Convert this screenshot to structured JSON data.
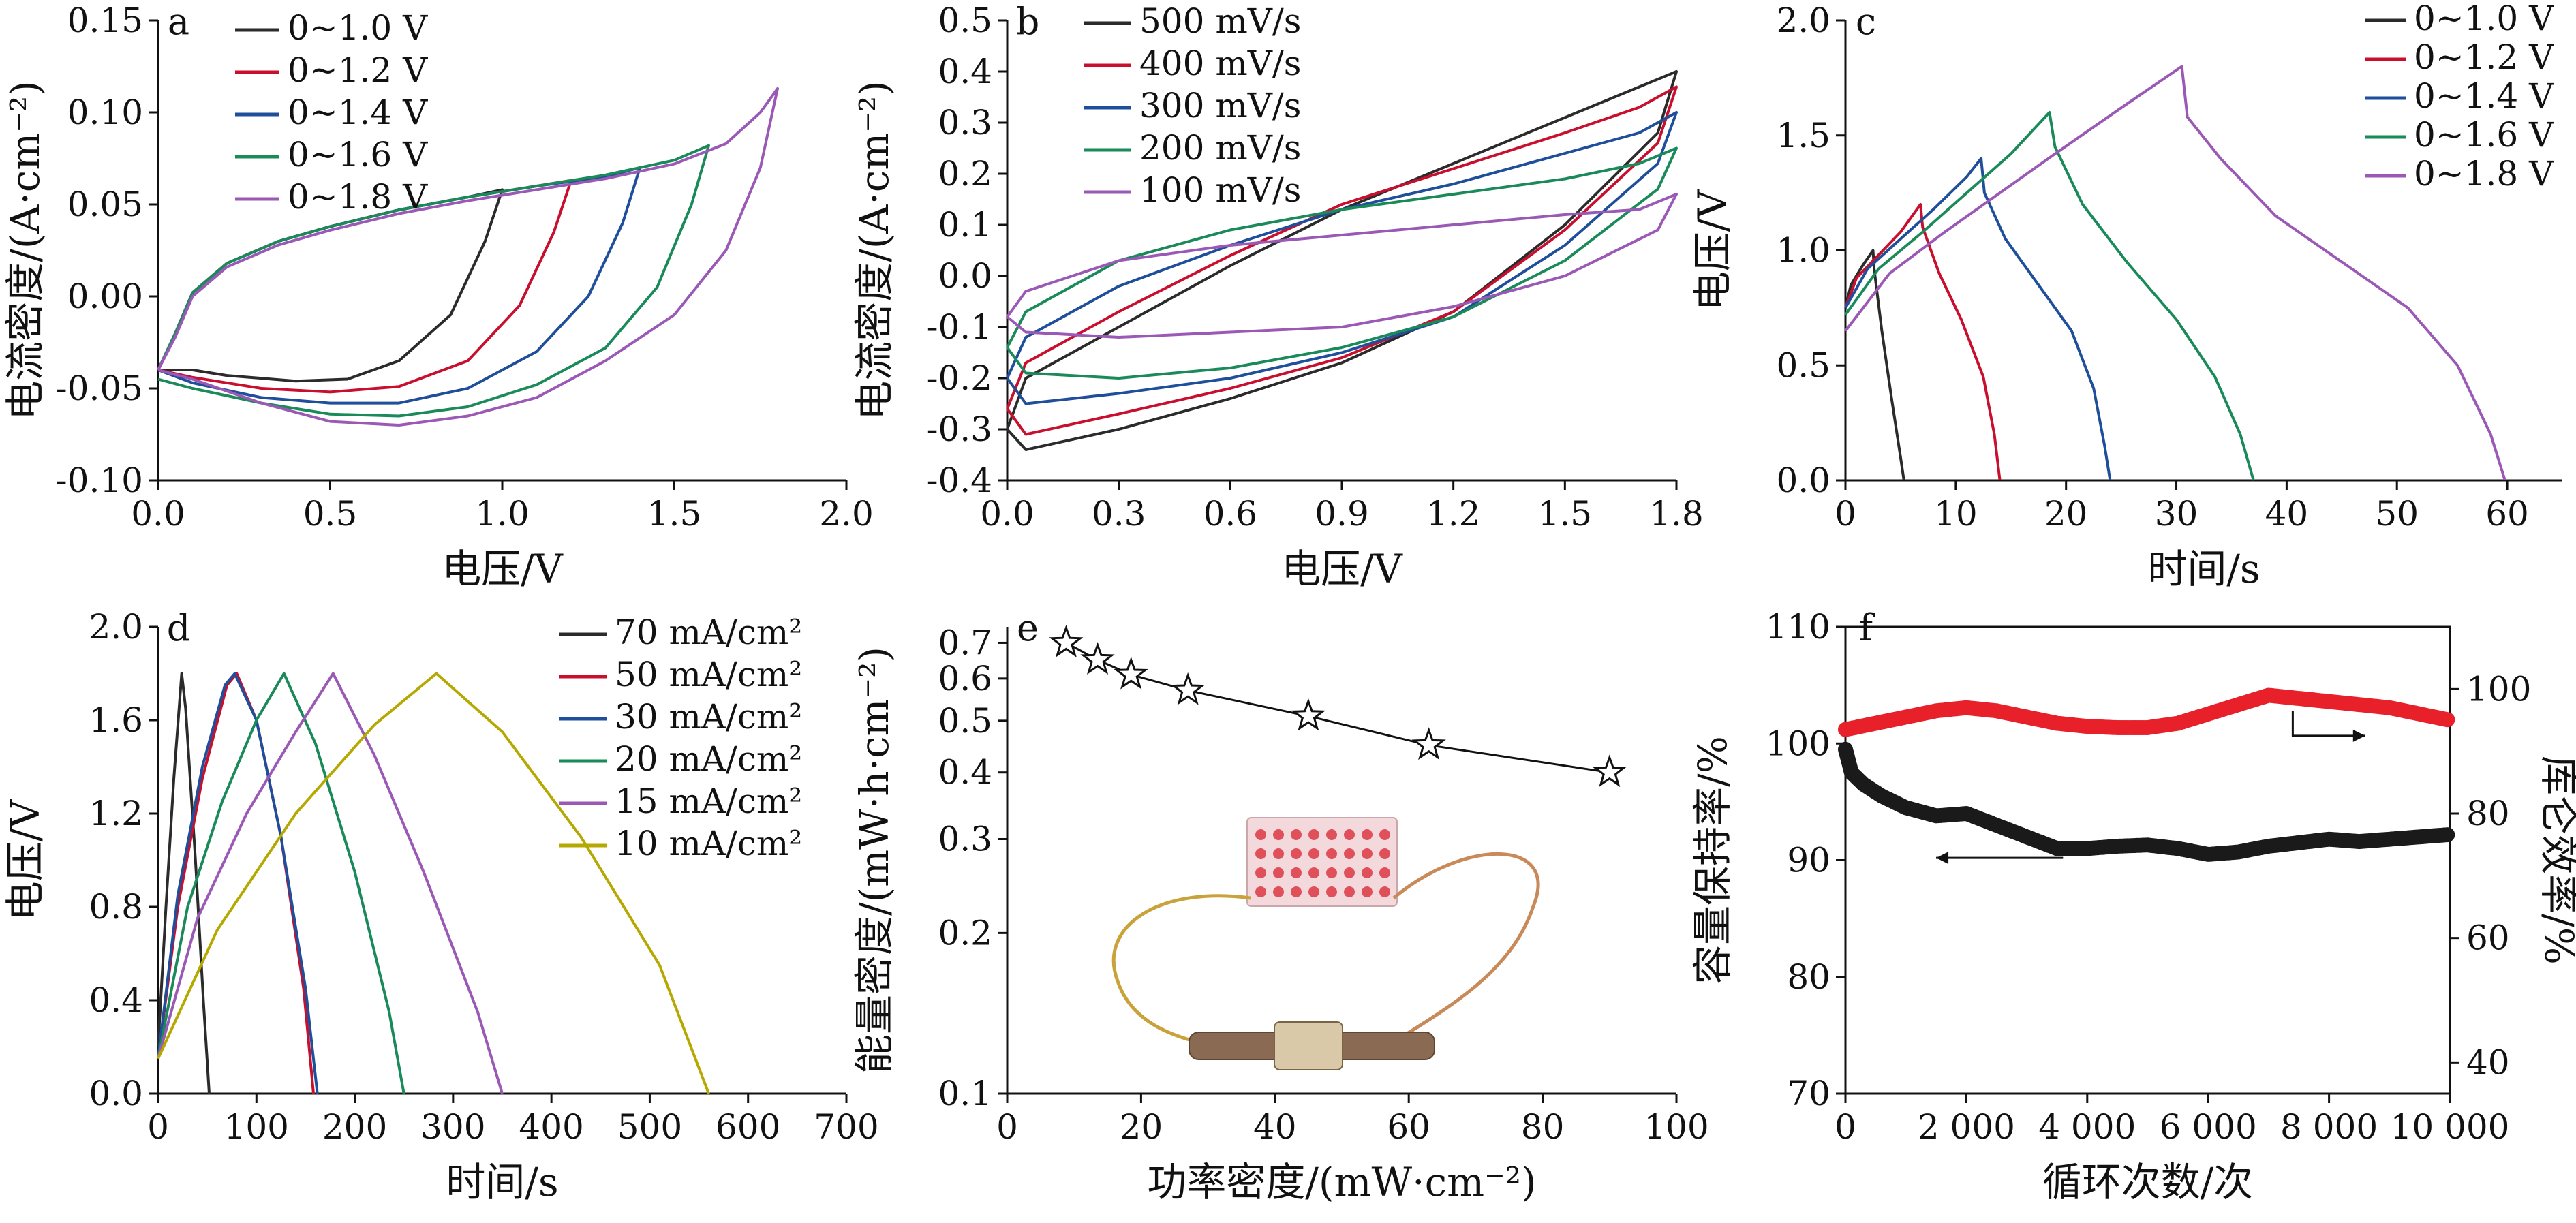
{
  "chart_data": [
    {
      "id": "a",
      "type": "line",
      "panel_label": "a",
      "xlabel": "电压/V",
      "ylabel": "电流密度/(A·cm⁻²)",
      "xlim": [
        0,
        2.0
      ],
      "ylim": [
        -0.1,
        0.15
      ],
      "xticks": [
        "0.0",
        "0.5",
        "1.0",
        "1.5",
        "2.0"
      ],
      "yticks": [
        "-0.10",
        "-0.05",
        "0.00",
        "0.05",
        "0.10",
        "0.15"
      ],
      "legend_position": "top-left",
      "series": [
        {
          "name": "0~1.0 V",
          "color": "#2b2b2b",
          "x": [
            0,
            0.05,
            0.1,
            0.2,
            0.35,
            0.5,
            0.7,
            0.9,
            1.0,
            0.95,
            0.85,
            0.7,
            0.55,
            0.4,
            0.2,
            0.1,
            0
          ],
          "y": [
            -0.04,
            -0.02,
            0.002,
            0.018,
            0.03,
            0.038,
            0.047,
            0.054,
            0.058,
            0.03,
            -0.01,
            -0.035,
            -0.045,
            -0.046,
            -0.043,
            -0.04,
            -0.04
          ]
        },
        {
          "name": "0~1.2 V",
          "color": "#c8102e",
          "x": [
            0,
            0.05,
            0.1,
            0.2,
            0.35,
            0.5,
            0.7,
            0.9,
            1.1,
            1.2,
            1.15,
            1.05,
            0.9,
            0.7,
            0.5,
            0.3,
            0.1,
            0
          ],
          "y": [
            -0.04,
            -0.02,
            0.002,
            0.018,
            0.03,
            0.038,
            0.047,
            0.054,
            0.06,
            0.063,
            0.035,
            -0.005,
            -0.035,
            -0.049,
            -0.052,
            -0.05,
            -0.044,
            -0.04
          ]
        },
        {
          "name": "0~1.4 V",
          "color": "#1f4e9a",
          "x": [
            0,
            0.05,
            0.1,
            0.2,
            0.35,
            0.5,
            0.7,
            0.9,
            1.1,
            1.3,
            1.4,
            1.35,
            1.25,
            1.1,
            0.9,
            0.7,
            0.5,
            0.3,
            0.1,
            0
          ],
          "y": [
            -0.04,
            -0.02,
            0.002,
            0.018,
            0.03,
            0.038,
            0.047,
            0.054,
            0.06,
            0.065,
            0.07,
            0.04,
            0.0,
            -0.03,
            -0.05,
            -0.058,
            -0.058,
            -0.055,
            -0.047,
            -0.04
          ]
        },
        {
          "name": "0~1.6 V",
          "color": "#1b8a5a",
          "x": [
            0,
            0.05,
            0.1,
            0.2,
            0.35,
            0.5,
            0.7,
            0.9,
            1.1,
            1.3,
            1.5,
            1.6,
            1.55,
            1.45,
            1.3,
            1.1,
            0.9,
            0.7,
            0.5,
            0.3,
            0.1,
            0
          ],
          "y": [
            -0.04,
            -0.02,
            0.002,
            0.018,
            0.03,
            0.038,
            0.047,
            0.054,
            0.06,
            0.066,
            0.074,
            0.082,
            0.05,
            0.005,
            -0.028,
            -0.048,
            -0.06,
            -0.065,
            -0.064,
            -0.058,
            -0.05,
            -0.045
          ]
        },
        {
          "name": "0~1.8 V",
          "color": "#9b59b6",
          "x": [
            0,
            0.05,
            0.1,
            0.2,
            0.35,
            0.5,
            0.7,
            0.9,
            1.1,
            1.3,
            1.5,
            1.65,
            1.75,
            1.8,
            1.75,
            1.65,
            1.5,
            1.3,
            1.1,
            0.9,
            0.7,
            0.5,
            0.3,
            0.1,
            0
          ],
          "y": [
            -0.04,
            -0.022,
            0.0,
            0.016,
            0.028,
            0.036,
            0.045,
            0.052,
            0.058,
            0.064,
            0.072,
            0.083,
            0.1,
            0.113,
            0.07,
            0.025,
            -0.01,
            -0.035,
            -0.055,
            -0.065,
            -0.07,
            -0.068,
            -0.058,
            -0.045,
            -0.04
          ]
        }
      ]
    },
    {
      "id": "b",
      "type": "line",
      "panel_label": "b",
      "xlabel": "电压/V",
      "ylabel": "电流密度/(A·cm⁻²)",
      "xlim": [
        0,
        1.8
      ],
      "ylim": [
        -0.4,
        0.5
      ],
      "xticks": [
        "0.0",
        "0.3",
        "0.6",
        "0.9",
        "1.2",
        "1.5",
        "1.8"
      ],
      "yticks": [
        "-0.4",
        "-0.3",
        "-0.2",
        "-0.1",
        "0.0",
        "0.1",
        "0.2",
        "0.3",
        "0.4",
        "0.5"
      ],
      "legend_position": "top-left",
      "series": [
        {
          "name": "500 mV/s",
          "color": "#2b2b2b",
          "x": [
            0,
            0.05,
            0.3,
            0.6,
            0.9,
            1.2,
            1.5,
            1.7,
            1.8,
            1.75,
            1.5,
            1.2,
            0.9,
            0.6,
            0.3,
            0.05,
            0
          ],
          "y": [
            -0.3,
            -0.2,
            -0.1,
            0.02,
            0.13,
            0.22,
            0.31,
            0.37,
            0.4,
            0.28,
            0.1,
            -0.07,
            -0.17,
            -0.24,
            -0.3,
            -0.34,
            -0.3
          ]
        },
        {
          "name": "400 mV/s",
          "color": "#c8102e",
          "x": [
            0,
            0.05,
            0.3,
            0.6,
            0.9,
            1.2,
            1.5,
            1.7,
            1.8,
            1.75,
            1.5,
            1.2,
            0.9,
            0.6,
            0.3,
            0.05,
            0
          ],
          "y": [
            -0.26,
            -0.17,
            -0.07,
            0.04,
            0.14,
            0.21,
            0.28,
            0.33,
            0.37,
            0.26,
            0.09,
            -0.07,
            -0.16,
            -0.22,
            -0.27,
            -0.31,
            -0.26
          ]
        },
        {
          "name": "300 mV/s",
          "color": "#1f4e9a",
          "x": [
            0,
            0.05,
            0.3,
            0.6,
            0.9,
            1.2,
            1.5,
            1.7,
            1.8,
            1.75,
            1.5,
            1.2,
            0.9,
            0.6,
            0.3,
            0.05,
            0
          ],
          "y": [
            -0.2,
            -0.12,
            -0.02,
            0.06,
            0.13,
            0.18,
            0.24,
            0.28,
            0.32,
            0.22,
            0.06,
            -0.08,
            -0.15,
            -0.2,
            -0.23,
            -0.25,
            -0.2
          ]
        },
        {
          "name": "200 mV/s",
          "color": "#1b8a5a",
          "x": [
            0,
            0.05,
            0.3,
            0.6,
            0.9,
            1.2,
            1.5,
            1.7,
            1.8,
            1.75,
            1.5,
            1.2,
            0.9,
            0.6,
            0.3,
            0.05,
            0
          ],
          "y": [
            -0.14,
            -0.07,
            0.03,
            0.09,
            0.13,
            0.16,
            0.19,
            0.22,
            0.25,
            0.17,
            0.03,
            -0.08,
            -0.14,
            -0.18,
            -0.2,
            -0.19,
            -0.14
          ]
        },
        {
          "name": "100 mV/s",
          "color": "#9b59b6",
          "x": [
            0,
            0.05,
            0.3,
            0.6,
            0.9,
            1.2,
            1.5,
            1.7,
            1.8,
            1.75,
            1.5,
            1.2,
            0.9,
            0.6,
            0.3,
            0.05,
            0
          ],
          "y": [
            -0.08,
            -0.03,
            0.03,
            0.06,
            0.08,
            0.1,
            0.12,
            0.13,
            0.16,
            0.09,
            0.0,
            -0.06,
            -0.1,
            -0.11,
            -0.12,
            -0.11,
            -0.08
          ]
        }
      ]
    },
    {
      "id": "c",
      "type": "line",
      "panel_label": "c",
      "xlabel": "时间/s",
      "ylabel": "电压/V",
      "xlim": [
        0,
        65
      ],
      "ylim": [
        0,
        2.0
      ],
      "xticks": [
        "0",
        "10",
        "20",
        "30",
        "40",
        "50",
        "60"
      ],
      "xtick_values": [
        0,
        10,
        20,
        30,
        40,
        50,
        60
      ],
      "yticks": [
        "0.0",
        "0.5",
        "1.0",
        "1.5",
        "2.0"
      ],
      "legend_position": "top-right",
      "series": [
        {
          "name": "0~1.0 V",
          "color": "#2b2b2b",
          "x": [
            0,
            0.5,
            1.5,
            2.5,
            2.6,
            3.3,
            4.2,
            5.0,
            5.3
          ],
          "y": [
            0.75,
            0.85,
            0.93,
            1.0,
            0.92,
            0.65,
            0.35,
            0.1,
            0.0
          ]
        },
        {
          "name": "0~1.2 V",
          "color": "#c8102e",
          "x": [
            0,
            1,
            3,
            5,
            6.8,
            7.0,
            8.5,
            10.5,
            12.5,
            13.5,
            14.0
          ],
          "y": [
            0.75,
            0.88,
            0.98,
            1.08,
            1.2,
            1.1,
            0.9,
            0.7,
            0.45,
            0.2,
            0.0
          ]
        },
        {
          "name": "0~1.4 V",
          "color": "#1f4e9a",
          "x": [
            0,
            2,
            5,
            8,
            11,
            12.3,
            12.6,
            14.5,
            17.5,
            20.5,
            22.5,
            23.5,
            24.0
          ],
          "y": [
            0.75,
            0.92,
            1.05,
            1.18,
            1.32,
            1.4,
            1.25,
            1.05,
            0.85,
            0.65,
            0.4,
            0.15,
            0.0
          ]
        },
        {
          "name": "0~1.6 V",
          "color": "#1b8a5a",
          "x": [
            0,
            3,
            7,
            11,
            15,
            18.5,
            19.0,
            21.5,
            25.5,
            30,
            33.5,
            35.8,
            37.0
          ],
          "y": [
            0.72,
            0.92,
            1.08,
            1.25,
            1.42,
            1.6,
            1.45,
            1.2,
            0.95,
            0.7,
            0.45,
            0.2,
            0.0
          ]
        },
        {
          "name": "0~1.8 V",
          "color": "#9b59b6",
          "x": [
            0,
            4,
            9,
            14,
            19,
            25,
            30.5,
            31.0,
            34,
            39,
            45,
            51,
            55.5,
            58.5,
            59.8
          ],
          "y": [
            0.65,
            0.9,
            1.08,
            1.25,
            1.42,
            1.62,
            1.8,
            1.58,
            1.4,
            1.15,
            0.95,
            0.75,
            0.5,
            0.2,
            0.0
          ]
        }
      ]
    },
    {
      "id": "d",
      "type": "line",
      "panel_label": "d",
      "xlabel": "时间/s",
      "ylabel": "电压/V",
      "xlim": [
        0,
        700
      ],
      "ylim": [
        0,
        2.0
      ],
      "xticks": [
        "0",
        "100",
        "200",
        "300",
        "400",
        "500",
        "600",
        "700"
      ],
      "yticks": [
        "0.0",
        "0.4",
        "0.8",
        "1.2",
        "1.6",
        "2.0"
      ],
      "legend_position": "top-right",
      "series": [
        {
          "name": "70 mA/cm²",
          "color": "#2b2b2b",
          "x": [
            0,
            8,
            16,
            24,
            28,
            38,
            46,
            52
          ],
          "y": [
            0.2,
            0.8,
            1.35,
            1.8,
            1.65,
            1.0,
            0.4,
            0.0
          ]
        },
        {
          "name": "50 mA/cm²",
          "color": "#c8102e",
          "x": [
            0,
            20,
            45,
            70,
            80,
            100,
            125,
            148,
            158
          ],
          "y": [
            0.15,
            0.8,
            1.35,
            1.75,
            1.8,
            1.6,
            1.1,
            0.45,
            0.0
          ]
        },
        {
          "name": "30 mA/cm²",
          "color": "#1f4e9a",
          "x": [
            0,
            20,
            45,
            68,
            78,
            100,
            125,
            150,
            162
          ],
          "y": [
            0.15,
            0.85,
            1.4,
            1.75,
            1.8,
            1.6,
            1.1,
            0.45,
            0.0
          ]
        },
        {
          "name": "20 mA/cm²",
          "color": "#1b8a5a",
          "x": [
            0,
            30,
            65,
            100,
            128,
            160,
            200,
            235,
            250
          ],
          "y": [
            0.15,
            0.8,
            1.25,
            1.6,
            1.8,
            1.5,
            0.95,
            0.35,
            0.0
          ]
        },
        {
          "name": "15 mA/cm²",
          "color": "#9b59b6",
          "x": [
            0,
            40,
            90,
            140,
            178,
            220,
            270,
            325,
            350
          ],
          "y": [
            0.15,
            0.75,
            1.2,
            1.55,
            1.8,
            1.45,
            0.95,
            0.35,
            0.0
          ]
        },
        {
          "name": "10 mA/cm²",
          "color": "#b5a800",
          "x": [
            0,
            60,
            140,
            220,
            283,
            350,
            430,
            510,
            560
          ],
          "y": [
            0.15,
            0.7,
            1.2,
            1.58,
            1.8,
            1.55,
            1.1,
            0.55,
            0.0
          ]
        }
      ]
    },
    {
      "id": "e",
      "type": "scatter",
      "panel_label": "e",
      "xlabel": "功率密度/(mW·cm⁻²)",
      "ylabel": "能量密度/(mW·h·cm⁻²)",
      "xlim": [
        0,
        100
      ],
      "ylim": [
        0.1,
        0.75
      ],
      "yscale": "log",
      "xticks": [
        "0",
        "20",
        "40",
        "60",
        "80",
        "100"
      ],
      "yticks": [
        "0.1",
        "0.2",
        "0.3",
        "0.4",
        "0.5",
        "0.6",
        "0.7"
      ],
      "ytick_values": [
        0.1,
        0.2,
        0.3,
        0.4,
        0.5,
        0.6,
        0.7
      ],
      "marker": "star",
      "series": [
        {
          "color": "#111111",
          "x": [
            8.8,
            13.5,
            18.5,
            27,
            45,
            63,
            90
          ],
          "y": [
            0.7,
            0.65,
            0.61,
            0.57,
            0.51,
            0.45,
            0.4
          ]
        }
      ]
    },
    {
      "id": "f",
      "type": "scatter",
      "panel_label": "f",
      "xlabel": "循环次数/次",
      "ylabel": "容量保持率/%",
      "ylabel_right": "库仑效率/%",
      "xlim": [
        0,
        10000
      ],
      "ylim": [
        70,
        110
      ],
      "ylim_right": [
        35,
        110
      ],
      "xticks": [
        "0",
        "2 000",
        "4 000",
        "6 000",
        "8 000",
        "10 000"
      ],
      "yticks": [
        "70",
        "80",
        "90",
        "100",
        "110"
      ],
      "yticks_right": [
        "40",
        "60",
        "80",
        "100"
      ],
      "series": [
        {
          "axis": "left",
          "color": "#1a1a1a",
          "x": [
            0,
            100,
            300,
            600,
            1000,
            1500,
            2000,
            2500,
            3000,
            3500,
            4000,
            4500,
            5000,
            5500,
            6000,
            6500,
            7000,
            7500,
            8000,
            8500,
            9000,
            9500,
            10000
          ],
          "y": [
            99.5,
            97.5,
            96.5,
            95.5,
            94.5,
            93.8,
            94.0,
            93.0,
            92.0,
            91.0,
            91.0,
            91.2,
            91.3,
            91.0,
            90.5,
            90.7,
            91.2,
            91.5,
            91.8,
            91.6,
            91.8,
            92.0,
            92.2
          ]
        },
        {
          "axis": "right",
          "color": "#e8202a",
          "x": [
            0,
            500,
            1000,
            1500,
            2000,
            2500,
            3000,
            3500,
            4000,
            4500,
            5000,
            5500,
            6000,
            6500,
            7000,
            7500,
            8000,
            8500,
            9000,
            9500,
            10000
          ],
          "y": [
            93.5,
            94.5,
            95.5,
            96.5,
            97.0,
            96.5,
            95.5,
            94.5,
            94.0,
            93.8,
            93.8,
            94.5,
            96.0,
            97.5,
            99.0,
            98.5,
            98.0,
            97.5,
            97.0,
            96.0,
            95.0
          ]
        }
      ]
    }
  ]
}
